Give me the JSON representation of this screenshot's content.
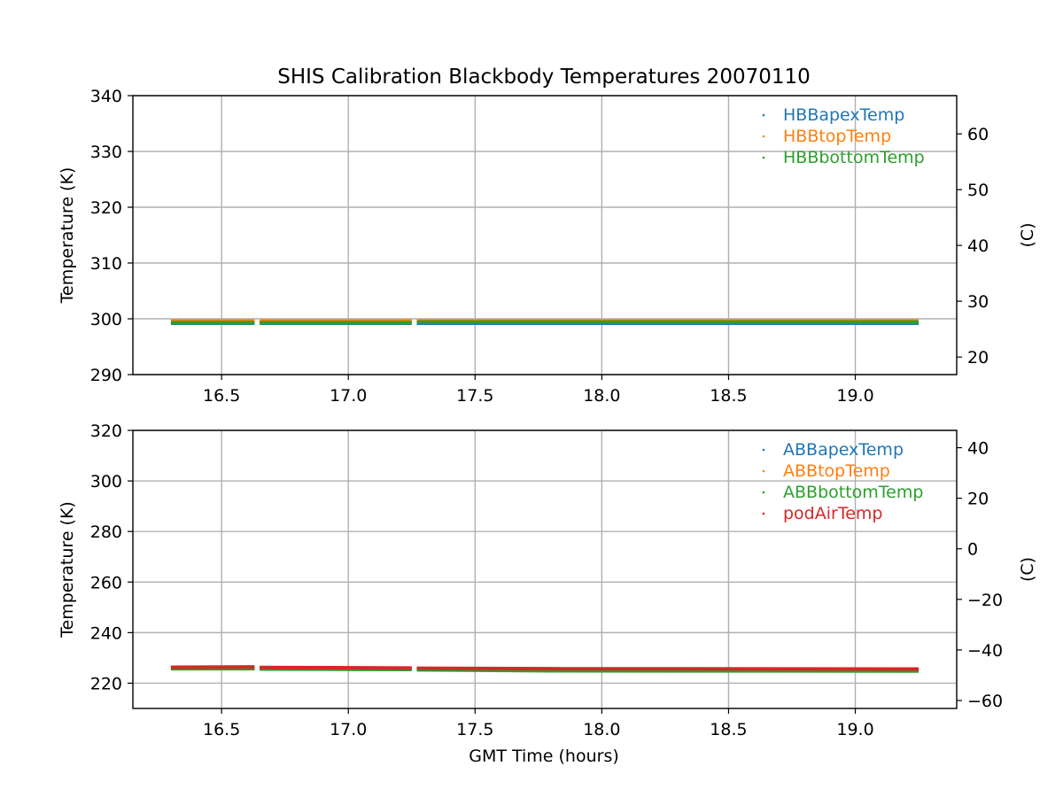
{
  "chart_data": {
    "title": "SHIS Calibration Blackbody Temperatures 20070110",
    "x_label": "GMT Time (hours)",
    "panels": [
      {
        "type": "scatter",
        "y_label": "Temperature (K)",
        "y2_label": "(C)",
        "xlim": [
          16.15,
          19.4
        ],
        "ylim": [
          290,
          340
        ],
        "xticks": [
          "16.5",
          "17.0",
          "17.5",
          "18.0",
          "18.5",
          "19.0"
        ],
        "xtick_values": [
          16.5,
          17.0,
          17.5,
          18.0,
          18.5,
          19.0
        ],
        "yticks": [
          "290",
          "300",
          "310",
          "320",
          "330",
          "340"
        ],
        "ytick_values": [
          290,
          300,
          310,
          320,
          330,
          340
        ],
        "y2ticks": [
          "20",
          "30",
          "40",
          "50",
          "60"
        ],
        "y2tick_values_c": [
          20,
          30,
          40,
          50,
          60
        ],
        "grid": true,
        "legend_position": "top-right",
        "series": [
          {
            "name": "HBBapexTemp",
            "color": "#1f77b4",
            "segments": [
              [
                [
                  16.3,
                  299.2
                ],
                [
                  16.63,
                  299.2
                ]
              ],
              [
                [
                  16.65,
                  299.2
                ],
                [
                  17.25,
                  299.2
                ]
              ],
              [
                [
                  17.27,
                  299.2
                ],
                [
                  18.0,
                  299.2
                ],
                [
                  19.25,
                  299.2
                ]
              ]
            ]
          },
          {
            "name": "HBBtopTemp",
            "color": "#ff7f0e",
            "segments": [
              [
                [
                  16.3,
                  299.6
                ],
                [
                  16.63,
                  299.6
                ]
              ],
              [
                [
                  16.65,
                  299.6
                ],
                [
                  17.25,
                  299.6
                ]
              ],
              [
                [
                  17.27,
                  299.6
                ],
                [
                  18.0,
                  299.6
                ],
                [
                  19.25,
                  299.6
                ]
              ]
            ]
          },
          {
            "name": "HBBbottomTemp",
            "color": "#2ca02c",
            "segments": [
              [
                [
                  16.3,
                  299.3
                ],
                [
                  16.63,
                  299.3
                ]
              ],
              [
                [
                  16.65,
                  299.3
                ],
                [
                  17.25,
                  299.3
                ]
              ],
              [
                [
                  17.27,
                  299.4
                ],
                [
                  18.0,
                  299.4
                ],
                [
                  19.25,
                  299.4
                ]
              ]
            ]
          }
        ]
      },
      {
        "type": "scatter",
        "y_label": "Temperature (K)",
        "y2_label": "(C)",
        "xlim": [
          16.15,
          19.4
        ],
        "ylim": [
          210,
          320
        ],
        "xticks": [
          "16.5",
          "17.0",
          "17.5",
          "18.0",
          "18.5",
          "19.0"
        ],
        "xtick_values": [
          16.5,
          17.0,
          17.5,
          18.0,
          18.5,
          19.0
        ],
        "yticks": [
          "220",
          "240",
          "260",
          "280",
          "300",
          "320"
        ],
        "ytick_values": [
          220,
          240,
          260,
          280,
          300,
          320
        ],
        "y2ticks": [
          "−60",
          "−40",
          "−20",
          "0",
          "20",
          "40"
        ],
        "y2tick_values_c": [
          -60,
          -40,
          -20,
          0,
          20,
          40
        ],
        "grid": true,
        "legend_position": "top-right",
        "series": [
          {
            "name": "ABBapexTemp",
            "color": "#1f77b4",
            "segments": [
              [
                [
                  16.3,
                  225.8
                ],
                [
                  16.63,
                  225.8
                ]
              ],
              [
                [
                  16.65,
                  225.7
                ],
                [
                  17.25,
                  225.5
                ]
              ],
              [
                [
                  17.27,
                  225.4
                ],
                [
                  17.8,
                  225.1
                ],
                [
                  19.25,
                  225.0
                ]
              ]
            ]
          },
          {
            "name": "ABBtopTemp",
            "color": "#ff7f0e",
            "segments": [
              [
                [
                  16.3,
                  226.0
                ],
                [
                  16.63,
                  226.0
                ]
              ],
              [
                [
                  16.65,
                  225.9
                ],
                [
                  17.25,
                  225.7
                ]
              ],
              [
                [
                  17.27,
                  225.6
                ],
                [
                  17.8,
                  225.3
                ],
                [
                  19.25,
                  225.2
                ]
              ]
            ]
          },
          {
            "name": "ABBbottomTemp",
            "color": "#2ca02c",
            "segments": [
              [
                [
                  16.3,
                  225.7
                ],
                [
                  16.63,
                  225.7
                ]
              ],
              [
                [
                  16.65,
                  225.6
                ],
                [
                  17.25,
                  225.4
                ]
              ],
              [
                [
                  17.27,
                  225.3
                ],
                [
                  17.8,
                  224.9
                ],
                [
                  19.25,
                  224.8
                ]
              ]
            ]
          },
          {
            "name": "podAirTemp",
            "color": "#d62728",
            "segments": [
              [
                [
                  16.3,
                  226.3
                ],
                [
                  16.63,
                  226.4
                ]
              ],
              [
                [
                  16.65,
                  226.2
                ],
                [
                  17.25,
                  226.0
                ]
              ],
              [
                [
                  17.27,
                  225.9
                ],
                [
                  17.8,
                  225.7
                ],
                [
                  19.25,
                  225.6
                ]
              ]
            ]
          }
        ]
      }
    ]
  }
}
